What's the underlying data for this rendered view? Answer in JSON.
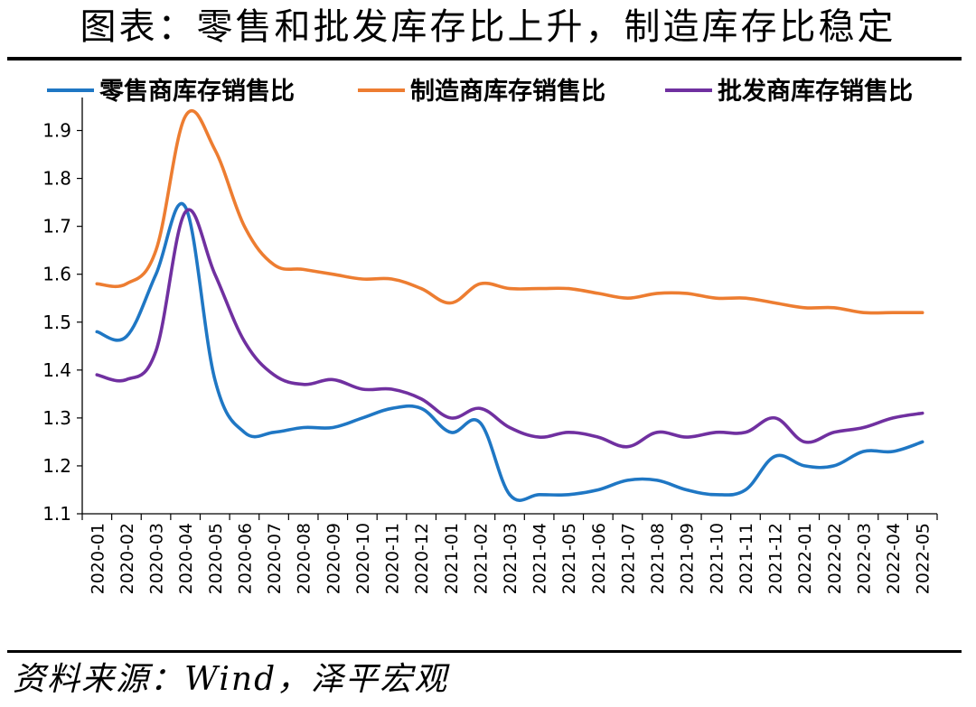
{
  "header": {
    "title": "图表：零售和批发库存比上升，制造库存比稳定"
  },
  "footer": {
    "source": "资料来源：Wind，泽平宏观"
  },
  "chart_data": {
    "type": "line",
    "title": "",
    "xlabel": "",
    "ylabel": "",
    "ylim": [
      1.1,
      1.95
    ],
    "yticks": [
      "1.1",
      "1.2",
      "1.3",
      "1.4",
      "1.5",
      "1.6",
      "1.7",
      "1.8",
      "1.9"
    ],
    "grid": false,
    "legend_position": "top",
    "categories": [
      "2020-01",
      "2020-02",
      "2020-03",
      "2020-04",
      "2020-05",
      "2020-06",
      "2020-07",
      "2020-08",
      "2020-09",
      "2020-10",
      "2020-11",
      "2020-12",
      "2021-01",
      "2021-02",
      "2021-03",
      "2021-04",
      "2021-05",
      "2021-06",
      "2021-07",
      "2021-08",
      "2021-09",
      "2021-10",
      "2021-11",
      "2021-12",
      "2022-01",
      "2022-02",
      "2022-03",
      "2022-04",
      "2022-05"
    ],
    "series": [
      {
        "name": "零售商库存销售比",
        "color": "#1f77c4",
        "values": [
          1.48,
          1.47,
          1.6,
          1.74,
          1.38,
          1.27,
          1.27,
          1.28,
          1.28,
          1.3,
          1.32,
          1.32,
          1.27,
          1.29,
          1.14,
          1.14,
          1.14,
          1.15,
          1.17,
          1.17,
          1.15,
          1.14,
          1.15,
          1.22,
          1.2,
          1.2,
          1.23,
          1.23,
          1.25
        ]
      },
      {
        "name": "制造商库存销售比",
        "color": "#ed7d31",
        "values": [
          1.58,
          1.58,
          1.65,
          1.93,
          1.86,
          1.7,
          1.62,
          1.61,
          1.6,
          1.59,
          1.59,
          1.57,
          1.54,
          1.58,
          1.57,
          1.57,
          1.57,
          1.56,
          1.55,
          1.56,
          1.56,
          1.55,
          1.55,
          1.54,
          1.53,
          1.53,
          1.52,
          1.52,
          1.52
        ]
      },
      {
        "name": "批发商库存销售比",
        "color": "#7030a0",
        "values": [
          1.39,
          1.38,
          1.44,
          1.73,
          1.6,
          1.46,
          1.39,
          1.37,
          1.38,
          1.36,
          1.36,
          1.34,
          1.3,
          1.32,
          1.28,
          1.26,
          1.27,
          1.26,
          1.24,
          1.27,
          1.26,
          1.27,
          1.27,
          1.3,
          1.25,
          1.27,
          1.28,
          1.3,
          1.31
        ]
      }
    ]
  }
}
